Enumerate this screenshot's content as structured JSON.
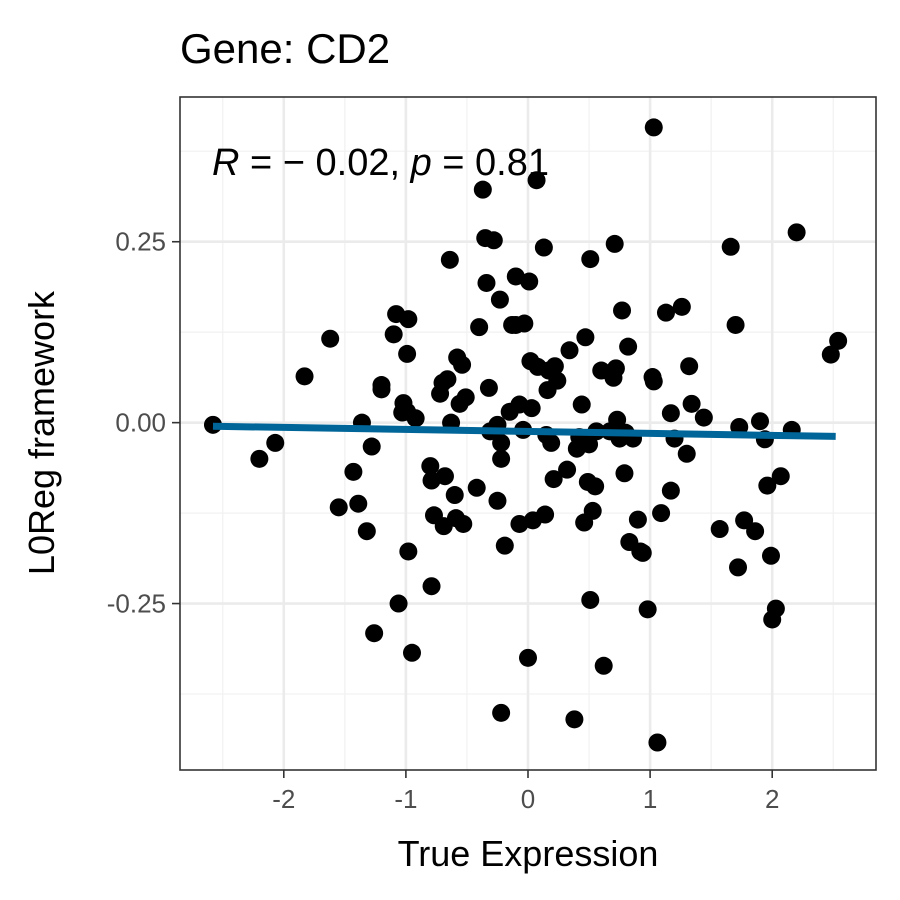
{
  "chart_data": {
    "type": "scatter",
    "title": "Gene: CD2",
    "xlabel": "True Expression",
    "ylabel": "L0Reg framework",
    "xlim": [
      -2.85,
      2.85
    ],
    "ylim": [
      -0.48,
      0.45
    ],
    "x_ticks": [
      -2,
      -1,
      0,
      1,
      2
    ],
    "x_tick_labels": [
      "-2",
      "-1",
      "0",
      "1",
      "2"
    ],
    "y_ticks": [
      -0.25,
      0.0,
      0.25
    ],
    "y_tick_labels": [
      "-0.25",
      "0.00",
      "0.25"
    ],
    "grid": true,
    "annotation": {
      "r_symbol": "R",
      "r_value": " = − 0.02, ",
      "p_symbol": "p",
      "p_value": " = 0.81"
    },
    "regression_line": {
      "x": [
        -2.58,
        2.52
      ],
      "y": [
        -0.005,
        -0.019
      ],
      "color": "#006699"
    },
    "point_color": "#000000",
    "points": [
      [
        -2.58,
        -0.003
      ],
      [
        -2.2,
        -0.05
      ],
      [
        -2.07,
        -0.028
      ],
      [
        -1.83,
        0.064
      ],
      [
        -1.62,
        0.116
      ],
      [
        -1.55,
        -0.117
      ],
      [
        -1.43,
        -0.068
      ],
      [
        -1.39,
        -0.112
      ],
      [
        -1.36,
        0.0
      ],
      [
        -1.32,
        -0.15
      ],
      [
        -1.28,
        -0.033
      ],
      [
        -1.26,
        -0.291
      ],
      [
        -1.2,
        0.052
      ],
      [
        -1.2,
        0.046
      ],
      [
        -1.1,
        0.122
      ],
      [
        -1.08,
        0.15
      ],
      [
        -1.06,
        -0.25
      ],
      [
        -1.03,
        0.014
      ],
      [
        -1.02,
        0.027
      ],
      [
        -0.98,
        0.143
      ],
      [
        -0.99,
        0.015
      ],
      [
        -0.99,
        0.095
      ],
      [
        -0.98,
        -0.178
      ],
      [
        -0.95,
        -0.318
      ],
      [
        -0.92,
        0.006
      ],
      [
        -0.8,
        -0.06
      ],
      [
        -0.79,
        -0.08
      ],
      [
        -0.79,
        -0.226
      ],
      [
        -0.77,
        -0.128
      ],
      [
        -0.72,
        0.04
      ],
      [
        -0.7,
        0.055
      ],
      [
        -0.69,
        -0.143
      ],
      [
        -0.68,
        -0.074
      ],
      [
        -0.66,
        0.06
      ],
      [
        -0.64,
        0.225
      ],
      [
        -0.63,
        0.0
      ],
      [
        -0.6,
        -0.1
      ],
      [
        -0.59,
        -0.132
      ],
      [
        -0.58,
        0.09
      ],
      [
        -0.56,
        0.026
      ],
      [
        -0.54,
        0.08
      ],
      [
        -0.53,
        -0.14
      ],
      [
        -0.51,
        0.035
      ],
      [
        -0.42,
        -0.09
      ],
      [
        -0.4,
        0.132
      ],
      [
        -0.37,
        0.322
      ],
      [
        -0.35,
        0.255
      ],
      [
        -0.34,
        0.193
      ],
      [
        -0.32,
        0.048
      ],
      [
        -0.31,
        -0.012
      ],
      [
        -0.28,
        0.252
      ],
      [
        -0.25,
        -0.003
      ],
      [
        -0.25,
        -0.108
      ],
      [
        -0.23,
        0.17
      ],
      [
        -0.22,
        -0.05
      ],
      [
        -0.22,
        -0.028
      ],
      [
        -0.22,
        -0.401
      ],
      [
        -0.19,
        -0.17
      ],
      [
        -0.15,
        0.015
      ],
      [
        -0.13,
        0.135
      ],
      [
        -0.1,
        0.202
      ],
      [
        -0.1,
        0.135
      ],
      [
        -0.07,
        0.025
      ],
      [
        -0.07,
        -0.14
      ],
      [
        -0.04,
        -0.01
      ],
      [
        -0.03,
        0.137
      ],
      [
        0.0,
        -0.325
      ],
      [
        0.01,
        0.195
      ],
      [
        0.02,
        0.085
      ],
      [
        0.03,
        0.02
      ],
      [
        0.04,
        -0.135
      ],
      [
        0.07,
        0.335
      ],
      [
        0.08,
        0.077
      ],
      [
        0.13,
        0.242
      ],
      [
        0.14,
        -0.127
      ],
      [
        0.15,
        -0.017
      ],
      [
        0.16,
        0.045
      ],
      [
        0.17,
        0.072
      ],
      [
        0.19,
        -0.028
      ],
      [
        0.21,
        -0.078
      ],
      [
        0.22,
        0.078
      ],
      [
        0.24,
        0.058
      ],
      [
        0.32,
        -0.065
      ],
      [
        0.34,
        0.1
      ],
      [
        0.38,
        -0.41
      ],
      [
        0.4,
        -0.036
      ],
      [
        0.42,
        -0.02
      ],
      [
        0.44,
        0.025
      ],
      [
        0.46,
        -0.138
      ],
      [
        0.47,
        0.118
      ],
      [
        0.49,
        -0.082
      ],
      [
        0.5,
        -0.03
      ],
      [
        0.51,
        0.226
      ],
      [
        0.51,
        -0.245
      ],
      [
        0.53,
        -0.122
      ],
      [
        0.55,
        -0.088
      ],
      [
        0.56,
        -0.012
      ],
      [
        0.6,
        0.072
      ],
      [
        0.62,
        -0.336
      ],
      [
        0.67,
        -0.012
      ],
      [
        0.7,
        0.062
      ],
      [
        0.71,
        0.247
      ],
      [
        0.72,
        0.075
      ],
      [
        0.73,
        0.004
      ],
      [
        0.75,
        -0.022
      ],
      [
        0.77,
        0.155
      ],
      [
        0.79,
        -0.07
      ],
      [
        0.8,
        -0.014
      ],
      [
        0.82,
        0.105
      ],
      [
        0.83,
        -0.165
      ],
      [
        0.86,
        -0.022
      ],
      [
        0.9,
        -0.134
      ],
      [
        0.92,
        -0.178
      ],
      [
        0.94,
        -0.18
      ],
      [
        0.98,
        -0.258
      ],
      [
        1.02,
        0.063
      ],
      [
        1.03,
        0.057
      ],
      [
        1.03,
        0.408
      ],
      [
        1.06,
        -0.442
      ],
      [
        1.09,
        -0.125
      ],
      [
        1.13,
        0.152
      ],
      [
        1.17,
        0.013
      ],
      [
        1.17,
        -0.094
      ],
      [
        1.2,
        -0.022
      ],
      [
        1.26,
        0.16
      ],
      [
        1.3,
        -0.043
      ],
      [
        1.32,
        0.078
      ],
      [
        1.34,
        0.026
      ],
      [
        1.44,
        0.007
      ],
      [
        1.57,
        -0.147
      ],
      [
        1.66,
        0.243
      ],
      [
        1.7,
        0.135
      ],
      [
        1.72,
        -0.2
      ],
      [
        1.73,
        -0.006
      ],
      [
        1.77,
        -0.135
      ],
      [
        1.86,
        -0.15
      ],
      [
        1.9,
        0.002
      ],
      [
        1.94,
        -0.023
      ],
      [
        1.96,
        -0.087
      ],
      [
        1.99,
        -0.184
      ],
      [
        2.0,
        -0.272
      ],
      [
        2.03,
        -0.257
      ],
      [
        2.07,
        -0.074
      ],
      [
        2.16,
        -0.01
      ],
      [
        2.2,
        0.263
      ],
      [
        2.48,
        0.094
      ],
      [
        2.54,
        0.113
      ]
    ]
  }
}
